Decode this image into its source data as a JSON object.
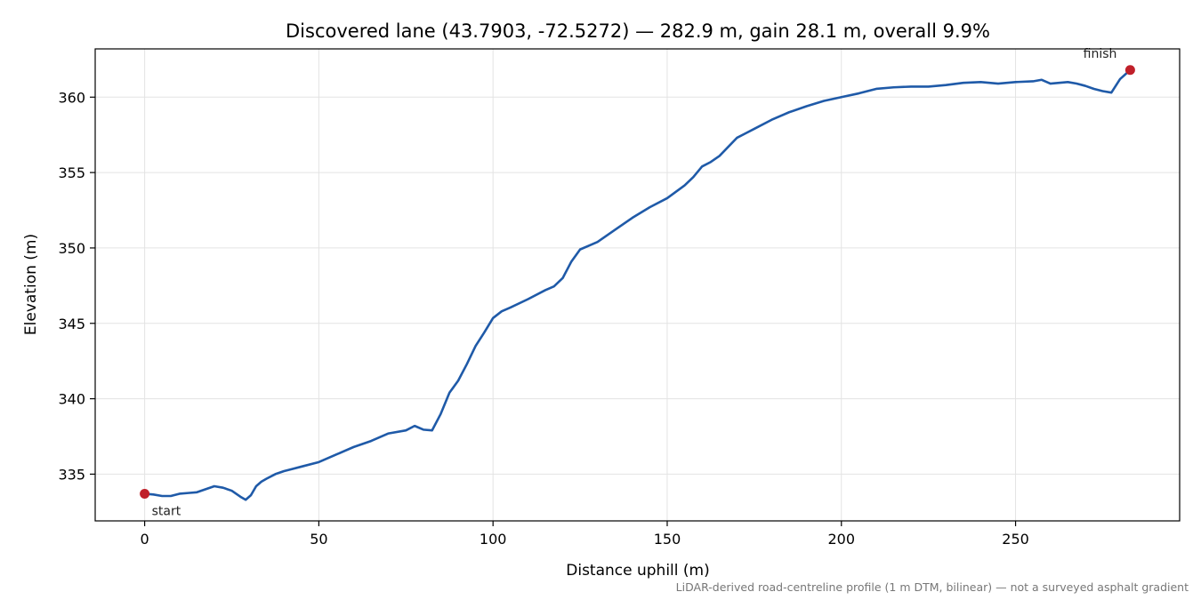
{
  "chart_data": {
    "type": "line",
    "title": "Discovered lane (43.7903, -72.5272) — 282.9 m, gain 28.1 m, overall 9.9%",
    "xlabel": "Distance uphill (m)",
    "ylabel": "Elevation (m)",
    "footnote": "LiDAR-derived road-centreline profile (1 m DTM, bilinear) — not a surveyed asphalt gradient",
    "xlim": [
      -14.2,
      297.1
    ],
    "ylim": [
      331.9,
      363.2
    ],
    "xticks": [
      0,
      50,
      100,
      150,
      200,
      250
    ],
    "yticks": [
      335,
      340,
      345,
      350,
      355,
      360
    ],
    "grid": true,
    "line_color": "#1f5aa8",
    "marker_color": "#c0202a",
    "series": [
      {
        "x": [
          0,
          2.5,
          5,
          7.5,
          10,
          12.5,
          15,
          17.5,
          20,
          22.5,
          25,
          27.5,
          29,
          30.5,
          32,
          33.5,
          35,
          37.5,
          40,
          42.5,
          45,
          50,
          55,
          60,
          65,
          70,
          75,
          77.5,
          80,
          82.5,
          85,
          87.5,
          90,
          92.5,
          95,
          97.5,
          100,
          102.5,
          105,
          110,
          115,
          117.5,
          120,
          122.5,
          125,
          127.5,
          130,
          135,
          140,
          145,
          150,
          155,
          157.5,
          160,
          162.5,
          165,
          170,
          172.5,
          175,
          180,
          185,
          190,
          195,
          200,
          205,
          210,
          215,
          220,
          225,
          230,
          235,
          240,
          245,
          250,
          255,
          257.5,
          260,
          262.5,
          265,
          267.5,
          270,
          272.5,
          275,
          277.5,
          280,
          282.9
        ],
        "y": [
          333.7,
          333.65,
          333.55,
          333.55,
          333.7,
          333.75,
          333.8,
          334.0,
          334.2,
          334.1,
          333.9,
          333.5,
          333.3,
          333.6,
          334.2,
          334.5,
          334.7,
          335.0,
          335.2,
          335.35,
          335.5,
          335.8,
          336.3,
          336.8,
          337.2,
          337.7,
          337.9,
          338.2,
          337.95,
          337.9,
          339.0,
          340.4,
          341.2,
          342.3,
          343.5,
          344.4,
          345.35,
          345.8,
          346.05,
          346.6,
          347.2,
          347.45,
          348.0,
          349.1,
          349.9,
          350.15,
          350.4,
          351.2,
          352.0,
          352.7,
          353.3,
          354.15,
          354.7,
          355.4,
          355.7,
          356.1,
          357.3,
          357.6,
          357.9,
          358.5,
          359.0,
          359.4,
          359.75,
          360.0,
          360.25,
          360.55,
          360.65,
          360.7,
          360.7,
          360.8,
          360.95,
          361.0,
          360.9,
          361.0,
          361.05,
          361.15,
          360.9,
          360.95,
          361.0,
          360.9,
          360.75,
          360.55,
          360.4,
          360.3,
          361.2,
          361.8
        ]
      }
    ],
    "annotations": [
      {
        "text": "start",
        "x": 0,
        "y": 333.7
      },
      {
        "text": "finish",
        "x": 282.9,
        "y": 361.8
      }
    ]
  }
}
